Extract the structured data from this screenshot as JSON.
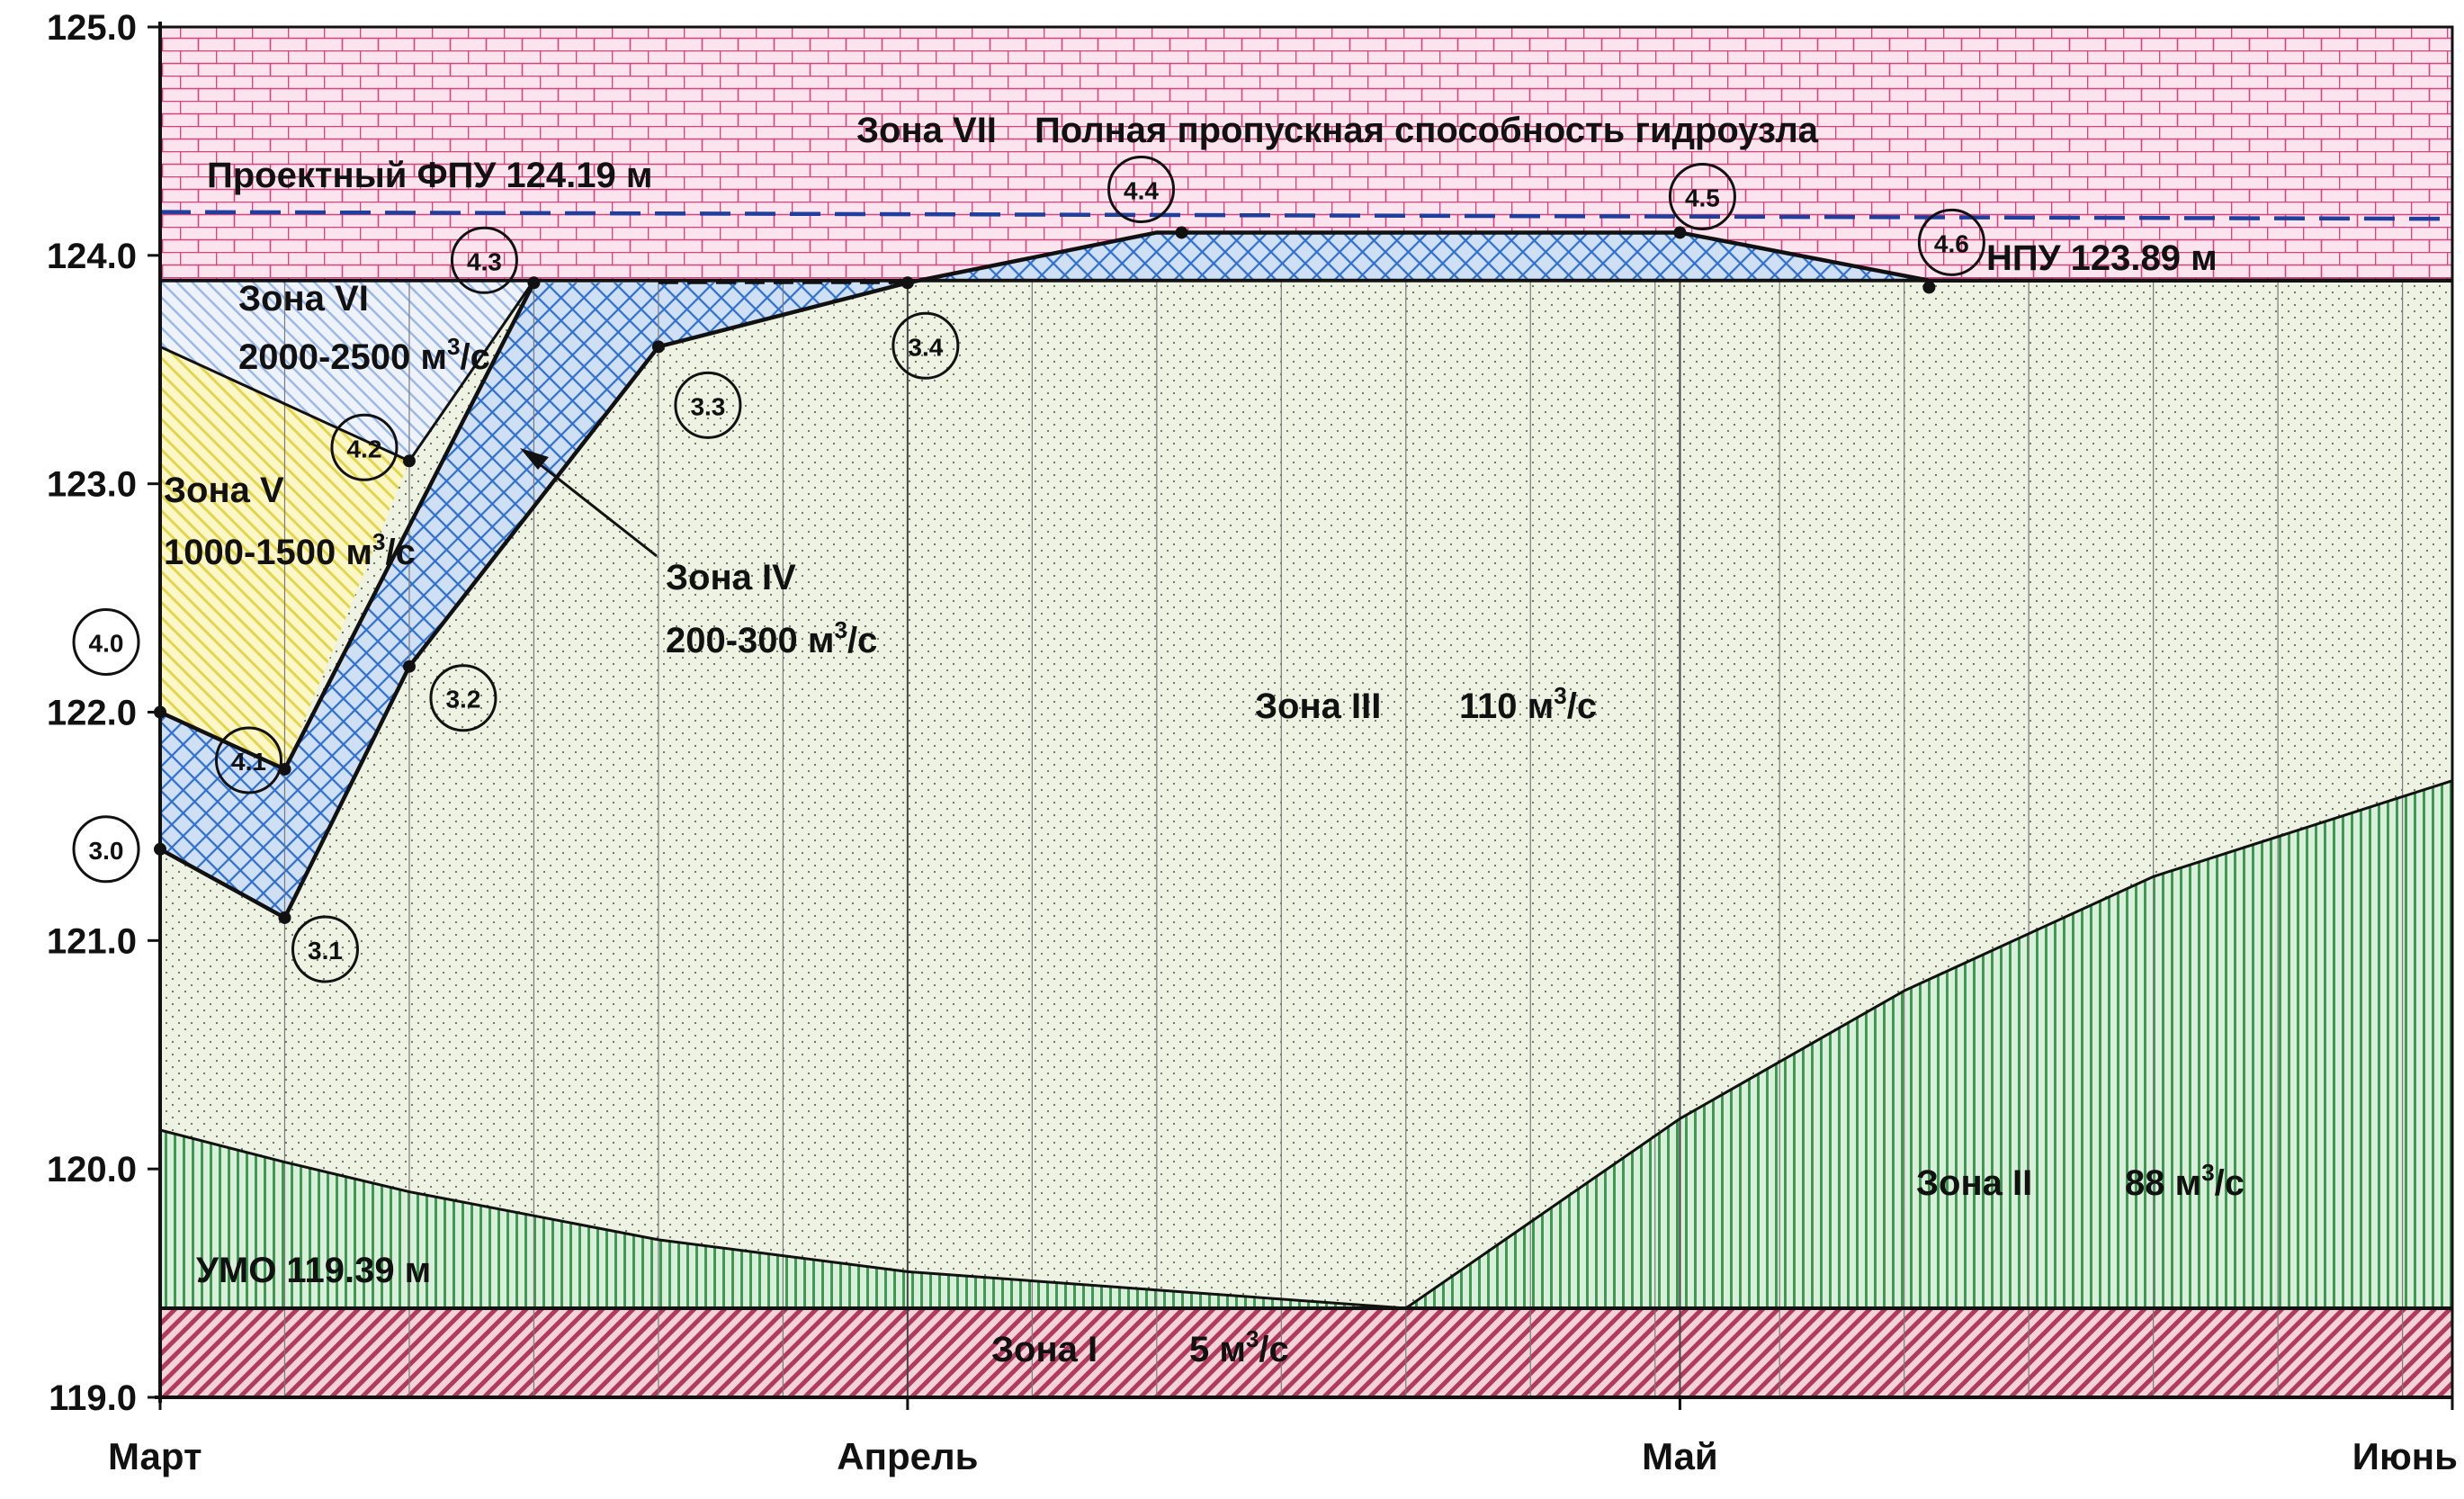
{
  "chart_data": {
    "type": "area",
    "ylim": [
      119.0,
      125.0
    ],
    "y_ticks": [
      "125.0",
      "124.0",
      "123.0",
      "122.0",
      "121.0",
      "120.0",
      "119.0"
    ],
    "x_ticks": [
      "Март",
      "Апрель",
      "Май",
      "Июнь"
    ],
    "x_domain_days": [
      0,
      92
    ],
    "boundaries": {
      "top_full": {
        "x": [
          0,
          92
        ],
        "y": [
          125.0,
          125.0
        ]
      },
      "npu": {
        "x": [
          0,
          92
        ],
        "y": [
          123.89,
          123.89
        ]
      },
      "umo": {
        "x": [
          0,
          92
        ],
        "y": [
          119.39,
          119.39
        ]
      },
      "zone2_upper": {
        "x": [
          0,
          5,
          10,
          20,
          30,
          40,
          50,
          61,
          70,
          80,
          92
        ],
        "y": [
          120.17,
          120.03,
          119.9,
          119.69,
          119.55,
          119.47,
          119.39,
          120.22,
          120.78,
          121.28,
          121.7
        ]
      },
      "zone3_upper_outline": {
        "x": [
          0,
          5,
          10,
          20,
          30,
          40,
          61,
          71,
          92
        ],
        "y": [
          121.4,
          121.1,
          122.2,
          123.6,
          123.88,
          124.1,
          124.1,
          123.89,
          123.89
        ]
      },
      "zone4_left": {
        "x": [
          0,
          5,
          15
        ],
        "y": [
          122.0,
          121.75,
          123.88
        ]
      },
      "zone5_upper": {
        "x": [
          0,
          10
        ],
        "y": [
          123.6,
          123.1
        ]
      },
      "zone4_dashed": {
        "x": [
          20,
          30
        ],
        "y": [
          123.88,
          123.88
        ]
      }
    },
    "reference_lines": [
      {
        "label": "Проектный ФПУ 124.19 м",
        "y": 124.19,
        "y_end": 124.16,
        "style": "dashed",
        "color": "#1f3f9e"
      }
    ],
    "control_points": [
      {
        "label": "3.0",
        "x": 0,
        "y": 121.4
      },
      {
        "label": "3.1",
        "x": 5,
        "y": 121.1
      },
      {
        "label": "3.2",
        "x": 10,
        "y": 122.2
      },
      {
        "label": "3.3",
        "x": 20,
        "y": 123.6
      },
      {
        "label": "3.4",
        "x": 30,
        "y": 123.88
      },
      {
        "label": "4.0",
        "x": 0,
        "y": 122.0
      },
      {
        "label": "4.1",
        "x": 5,
        "y": 121.75
      },
      {
        "label": "4.2",
        "x": 10,
        "y": 123.1
      },
      {
        "label": "4.3",
        "x": 15,
        "y": 123.88
      },
      {
        "label": "4.4",
        "x": 41,
        "y": 124.1
      },
      {
        "label": "4.5",
        "x": 61,
        "y": 124.1
      },
      {
        "label": "4.6",
        "x": 71,
        "y": 123.86
      }
    ],
    "zones": [
      {
        "name": "Зона I",
        "value": "5 м³/с",
        "color": "#c0506a"
      },
      {
        "name": "Зона II",
        "value": "88 м³/с",
        "color": "#2e8b3f"
      },
      {
        "name": "Зона III",
        "value": "110 м³/с",
        "color": "#e8f0da"
      },
      {
        "name": "Зона IV",
        "value": "200-300 м³/с",
        "color": "#2f6fd0"
      },
      {
        "name": "Зона V",
        "value": "1000-1500 м³/с",
        "color": "#f6f08a"
      },
      {
        "name": "Зона VI",
        "value": "2000-2500 м³/с",
        "color": "#9ab8e8"
      },
      {
        "name": "Зона VII",
        "value": "Полная пропускная способность гидроузла",
        "color": "#e0609a"
      }
    ],
    "annotations": {
      "fpu": "Проектный ФПУ 124.19 м",
      "npu": "НПУ 123.89 м",
      "umo": "УМО 119.39 м",
      "zone7_name": "Зона VII",
      "zone7_desc": "Полная пропускная способность гидроузла",
      "zone6_name": "Зона VI",
      "zone6_value": "2000-2500 м",
      "zone5_name": "Зона V",
      "zone5_value": "1000-1500 м",
      "zone4_name": "Зона IV",
      "zone4_value": "200-300 м",
      "zone3_name": "Зона III",
      "zone3_value": "110 м",
      "zone2_name": "Зона II",
      "zone2_value": "88 м",
      "zone1_name": "Зона I",
      "zone1_value": "5 м",
      "cube": "3",
      "per_sec": "/с"
    }
  }
}
